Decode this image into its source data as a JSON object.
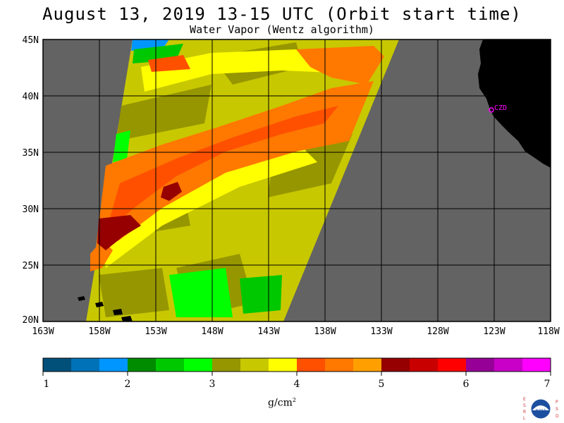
{
  "title": "August 13, 2019  13-15 UTC  (Orbit start time)",
  "subtitle": "Water Vapor (Wentz algorithm)",
  "map": {
    "lat_labels": [
      "45N",
      "40N",
      "35N",
      "30N",
      "25N",
      "20N"
    ],
    "lon_labels": [
      "163W",
      "158W",
      "153W",
      "148W",
      "143W",
      "138W",
      "133W",
      "128W",
      "123W",
      "118W"
    ],
    "lat_range": [
      20,
      45
    ],
    "lon_range": [
      -163,
      -118
    ],
    "station_label": "CZD",
    "colors": {
      "no_data": "#636363",
      "land": "#000000",
      "grid": "#000000",
      "station": "#ff00ff"
    }
  },
  "colorbar": {
    "ticks": [
      "1",
      "2",
      "3",
      "4",
      "5",
      "6",
      "7"
    ],
    "colors": [
      "#00507a",
      "#0073b8",
      "#0096ff",
      "#008c00",
      "#00c800",
      "#00ff00",
      "#969600",
      "#c8c800",
      "#ffff00",
      "#ff5000",
      "#ff7800",
      "#ffa000",
      "#960000",
      "#c80000",
      "#ff0000",
      "#960096",
      "#c800c8",
      "#ff00ff"
    ],
    "unit_base": "g/cm",
    "unit_exp": "2"
  },
  "logo": {
    "left_letters": [
      "E",
      "S",
      "R",
      "L"
    ],
    "right_letters": [
      "P",
      "S",
      "D"
    ],
    "text": "NOAA"
  }
}
